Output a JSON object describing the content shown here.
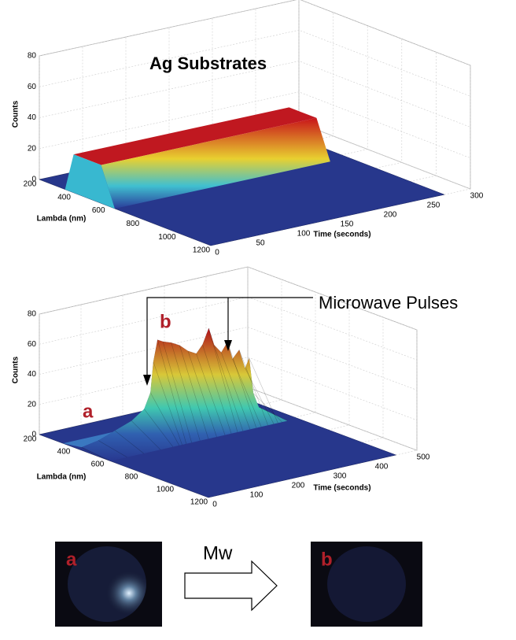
{
  "chart_data": [
    {
      "type": "surface",
      "title": "Ag Substrates",
      "xlabel": "Lambda (nm)",
      "ylabel": "Time (seconds)",
      "zlabel": "Counts",
      "xlim": [
        200,
        1200
      ],
      "xticks": [
        200,
        400,
        600,
        800,
        1000,
        1200
      ],
      "ylim": [
        0,
        300
      ],
      "yticks": [
        0,
        50,
        100,
        150,
        200,
        250,
        300
      ],
      "zlim": [
        0,
        80
      ],
      "zticks": [
        0,
        20,
        40,
        60,
        80
      ]
    },
    {
      "type": "surface",
      "xlabel": "Lambda (nm)",
      "ylabel": "Time (seconds)",
      "zlabel": "Counts",
      "annotations": [
        "Microwave Pulses",
        "a",
        "b"
      ],
      "xlim": [
        200,
        1200
      ],
      "xticks": [
        200,
        400,
        600,
        800,
        1000,
        1200
      ],
      "ylim": [
        0,
        500
      ],
      "yticks": [
        0,
        100,
        200,
        300,
        400,
        500
      ],
      "zlim": [
        0,
        80
      ],
      "zticks": [
        0,
        20,
        40,
        60,
        80
      ]
    }
  ],
  "images": {
    "arrow_label": "Mw",
    "panels": [
      "a",
      "b"
    ]
  }
}
